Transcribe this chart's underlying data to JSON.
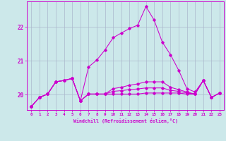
{
  "xlabel": "Windchill (Refroidissement éolien,°C)",
  "x_ticks": [
    0,
    1,
    2,
    3,
    4,
    5,
    6,
    7,
    8,
    9,
    10,
    11,
    12,
    13,
    14,
    15,
    16,
    17,
    18,
    19,
    20,
    21,
    22,
    23
  ],
  "ylim": [
    19.55,
    22.75
  ],
  "yticks": [
    20,
    21,
    22
  ],
  "background_color": "#cce8ea",
  "grid_color": "#aab8cc",
  "line_color": "#cc00cc",
  "series": [
    [
      19.65,
      19.92,
      20.02,
      20.38,
      20.42,
      20.48,
      19.82,
      20.82,
      21.02,
      21.32,
      21.68,
      21.82,
      21.95,
      22.05,
      22.6,
      22.2,
      21.55,
      21.18,
      20.72,
      20.18,
      20.08,
      20.42,
      19.92,
      20.05
    ],
    [
      19.65,
      19.92,
      20.02,
      20.38,
      20.42,
      20.48,
      19.82,
      20.02,
      20.02,
      20.02,
      20.02,
      20.02,
      20.02,
      20.02,
      20.05,
      20.05,
      20.05,
      20.05,
      20.05,
      20.02,
      20.02,
      20.42,
      19.92,
      20.05
    ],
    [
      19.65,
      19.92,
      20.02,
      20.38,
      20.42,
      20.48,
      19.82,
      20.02,
      20.02,
      20.02,
      20.18,
      20.22,
      20.28,
      20.32,
      20.38,
      20.38,
      20.38,
      20.22,
      20.15,
      20.08,
      20.02,
      20.42,
      19.92,
      20.05
    ],
    [
      19.65,
      19.92,
      20.02,
      20.38,
      20.42,
      20.48,
      19.82,
      20.02,
      20.02,
      20.02,
      20.1,
      20.12,
      20.15,
      20.17,
      20.2,
      20.2,
      20.2,
      20.13,
      20.1,
      20.05,
      20.02,
      20.42,
      19.92,
      20.05
    ]
  ],
  "marker": "D",
  "markersize": 1.8,
  "linewidth": 0.75
}
